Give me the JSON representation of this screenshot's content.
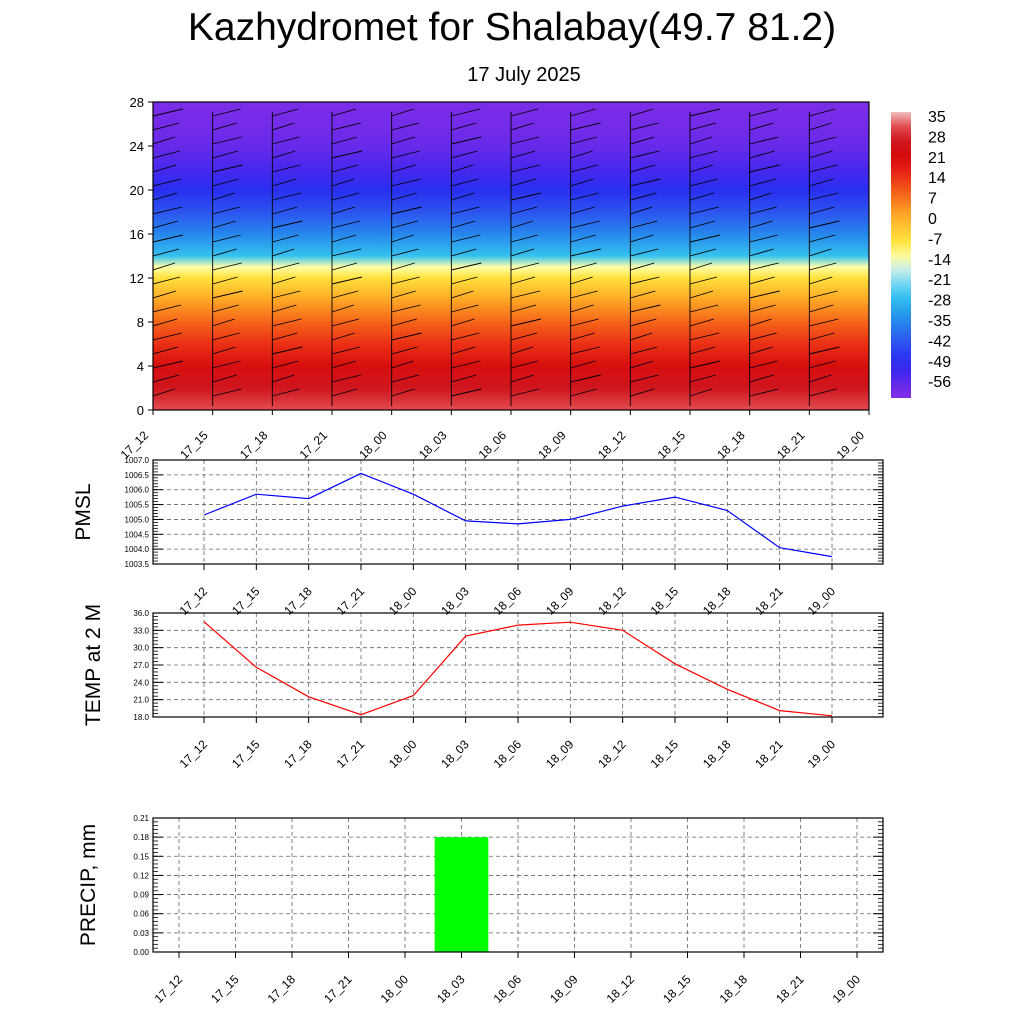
{
  "title": "Kazhydromet for Shalabay(49.7 81.2)",
  "subtitle": "17 July 2025",
  "chart_data": [
    {
      "type": "heatmap",
      "name": "temperature-by-altitude",
      "x_ticks": [
        "17_12",
        "17_15",
        "17_18",
        "17_21",
        "18_00",
        "18_03",
        "18_06",
        "18_09",
        "18_12",
        "18_15",
        "18_18",
        "18_21",
        "19_00"
      ],
      "y_ticks": [
        0,
        4,
        8,
        12,
        16,
        20,
        24,
        28
      ],
      "ylim": [
        0,
        28
      ],
      "colorbar_labels": [
        "35",
        "28",
        "21",
        "14",
        "7",
        "0",
        "-7",
        "-14",
        "-21",
        "-28",
        "-35",
        "-42",
        "-49",
        "-56"
      ],
      "colorbar_range": [
        -60,
        38
      ],
      "profile_levels_km": [
        0,
        2,
        4,
        6,
        8,
        10,
        12,
        13,
        14,
        16,
        18,
        20,
        22,
        24,
        26,
        28
      ],
      "profile_temps_c": [
        33,
        28,
        22,
        16,
        10,
        3,
        -6,
        -12,
        -25,
        -34,
        -41,
        -47,
        -52,
        -56,
        -58,
        -59
      ],
      "shows_wind_barbs": true
    },
    {
      "type": "line",
      "name": "pmsl",
      "ylabel": "PMSL",
      "x_ticks": [
        "17_12",
        "17_15",
        "17_18",
        "17_21",
        "18_00",
        "18_03",
        "18_06",
        "18_09",
        "18_12",
        "18_15",
        "18_18",
        "18_21",
        "19_00"
      ],
      "y_ticks": [
        "1003.5",
        "1004.0",
        "1004.5",
        "1005.0",
        "1005.5",
        "1006.0",
        "1006.5",
        "1007.0"
      ],
      "ylim": [
        1003.5,
        1007.0
      ],
      "values": [
        1005.15,
        1005.85,
        1005.7,
        1006.55,
        1005.85,
        1004.95,
        1004.85,
        1005.0,
        1005.45,
        1005.75,
        1005.3,
        1004.05,
        1003.75
      ],
      "color": "#0000ff",
      "grid": true
    },
    {
      "type": "line",
      "name": "temp-2m",
      "ylabel": "TEMP at 2 M",
      "x_ticks": [
        "17_12",
        "17_15",
        "17_18",
        "17_21",
        "18_00",
        "18_03",
        "18_06",
        "18_09",
        "18_12",
        "18_15",
        "18_18",
        "18_21",
        "19_00"
      ],
      "y_ticks": [
        "18.0",
        "21.0",
        "24.0",
        "27.0",
        "30.0",
        "33.0",
        "36.0"
      ],
      "ylim": [
        18.0,
        36.0
      ],
      "values": [
        34.5,
        26.6,
        21.5,
        18.4,
        21.7,
        32.0,
        33.9,
        34.4,
        33.0,
        27.2,
        22.8,
        19.1,
        18.2
      ],
      "color": "#ff0000",
      "grid": true
    },
    {
      "type": "bar",
      "name": "precip",
      "ylabel": "PRECIP, mm",
      "x_ticks": [
        "17_12",
        "17_15",
        "17_18",
        "17_21",
        "18_00",
        "18_03",
        "18_06",
        "18_09",
        "18_12",
        "18_15",
        "18_18",
        "18_21",
        "19_00"
      ],
      "y_ticks": [
        "0.00",
        "0.03",
        "0.06",
        "0.09",
        "0.12",
        "0.15",
        "0.18",
        "0.21"
      ],
      "ylim": [
        0,
        0.21
      ],
      "values": [
        0,
        0,
        0,
        0,
        0,
        0.18,
        0,
        0,
        0,
        0,
        0,
        0,
        0
      ],
      "color": "#00ff00",
      "grid": true
    }
  ]
}
